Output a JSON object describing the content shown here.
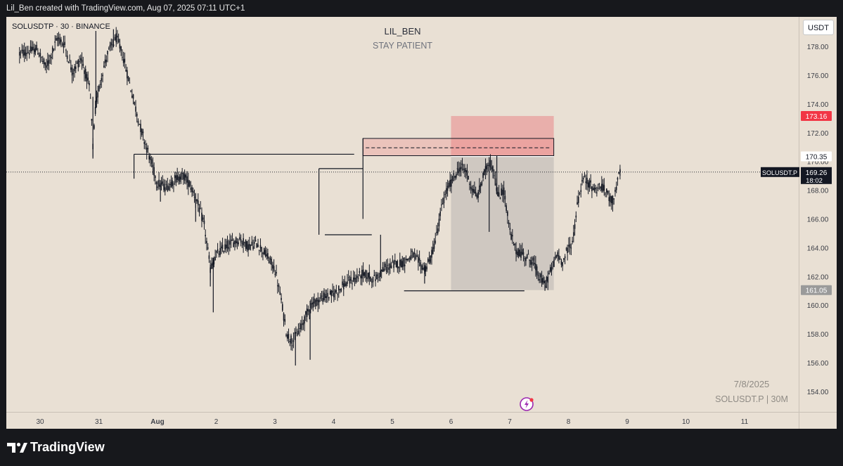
{
  "header": {
    "credit": "Lil_Ben created with TradingView.com, Aug 07, 2025 07:11 UTC+1"
  },
  "chart_header": {
    "symbol_info": "SOLUSDTP · 30 · BINANCE"
  },
  "titles": {
    "line1": "LIL_BEN",
    "line2": "STAY PATIENT"
  },
  "currency_button": "USDT",
  "watermark": {
    "date": "7/8/2025",
    "symbol": "SOLUSDT.P | 30M"
  },
  "footer": {
    "brand": "TradingView"
  },
  "colors": {
    "background": "#e9e0d4",
    "candle": "#131722",
    "stop_zone": "#e89a9a",
    "target_zone": "#c6c0bb",
    "stop_label": "#f23645"
  },
  "chart_data": {
    "type": "candlestick",
    "ylim": [
      152.6,
      179.4
    ],
    "y_ticks": [
      "154.00",
      "156.00",
      "158.00",
      "160.00",
      "162.00",
      "164.00",
      "166.00",
      "168.00",
      "170.00",
      "172.00",
      "174.00",
      "176.00",
      "178.00"
    ],
    "x_ticks": [
      "30",
      "31",
      "Aug",
      "2",
      "3",
      "4",
      "5",
      "6",
      "7",
      "8",
      "9",
      "10",
      "11"
    ],
    "last_price": 169.26,
    "price_labels": [
      {
        "value": 173.16,
        "text": "173.16",
        "kind": "stop"
      },
      {
        "value": 170.35,
        "text": "170.35",
        "kind": "entry"
      },
      {
        "value": 161.05,
        "text": "161.05",
        "kind": "target"
      }
    ],
    "current_label": {
      "symbol": "SOLUSDT.P",
      "price": "169.26",
      "countdown": "18:02"
    },
    "position": {
      "side": "short",
      "stop": 173.16,
      "entry": 170.35,
      "target": 161.05,
      "start_day": 7.0,
      "end_day": 8.75
    },
    "supply_zone": {
      "top": 171.6,
      "bottom": 170.4,
      "mid": 170.95,
      "start_day": 5.5,
      "end_day": 8.75
    },
    "levels": [
      {
        "price": 170.5,
        "start_day": 1.6,
        "end_day": 5.35
      },
      {
        "price": 169.5,
        "start_day": 4.75,
        "end_day": 5.5
      },
      {
        "price": 164.9,
        "start_day": 4.85,
        "end_day": 5.65
      },
      {
        "price": 161.0,
        "start_day": 6.2,
        "end_day": 8.25
      }
    ],
    "path": [
      [
        -0.35,
        177.5
      ],
      [
        -0.05,
        177.8
      ],
      [
        0.1,
        176.5
      ],
      [
        0.3,
        178.6
      ],
      [
        0.42,
        178.1
      ],
      [
        0.55,
        176.2
      ],
      [
        0.7,
        177.2
      ],
      [
        0.85,
        175.0
      ],
      [
        0.9,
        171.0
      ],
      [
        0.95,
        174.0
      ],
      [
        1.05,
        176.0
      ],
      [
        1.15,
        177.5
      ],
      [
        1.3,
        178.6
      ],
      [
        1.4,
        177.5
      ],
      [
        1.55,
        175.0
      ],
      [
        1.7,
        172.5
      ],
      [
        1.85,
        170.5
      ],
      [
        2.0,
        168.5
      ],
      [
        2.15,
        168.2
      ],
      [
        2.3,
        168.8
      ],
      [
        2.45,
        169.0
      ],
      [
        2.55,
        168.4
      ],
      [
        2.65,
        167.5
      ],
      [
        2.8,
        165.5
      ],
      [
        2.9,
        162.5
      ],
      [
        3.0,
        163.5
      ],
      [
        3.2,
        164.2
      ],
      [
        3.4,
        164.6
      ],
      [
        3.55,
        164.1
      ],
      [
        3.7,
        164.3
      ],
      [
        3.85,
        163.5
      ],
      [
        4.0,
        162.5
      ],
      [
        4.1,
        160.5
      ],
      [
        4.2,
        158.0
      ],
      [
        4.3,
        157.5
      ],
      [
        4.45,
        158.5
      ],
      [
        4.6,
        160.0
      ],
      [
        4.8,
        160.5
      ],
      [
        5.0,
        160.8
      ],
      [
        5.2,
        161.5
      ],
      [
        5.35,
        161.8
      ],
      [
        5.5,
        162.2
      ],
      [
        5.7,
        161.8
      ],
      [
        5.85,
        162.5
      ],
      [
        6.0,
        162.8
      ],
      [
        6.2,
        163.0
      ],
      [
        6.35,
        163.5
      ],
      [
        6.45,
        163.0
      ],
      [
        6.55,
        162.5
      ],
      [
        6.65,
        163.2
      ],
      [
        6.75,
        164.8
      ],
      [
        6.85,
        167.0
      ],
      [
        6.95,
        168.2
      ],
      [
        7.05,
        168.9
      ],
      [
        7.15,
        169.6
      ],
      [
        7.25,
        169.4
      ],
      [
        7.35,
        168.2
      ],
      [
        7.45,
        167.5
      ],
      [
        7.55,
        169.0
      ],
      [
        7.65,
        170.0
      ],
      [
        7.72,
        169.5
      ],
      [
        7.8,
        167.5
      ],
      [
        7.9,
        168.0
      ],
      [
        8.0,
        165.2
      ],
      [
        8.1,
        163.8
      ],
      [
        8.25,
        163.5
      ],
      [
        8.4,
        163.0
      ],
      [
        8.5,
        162.0
      ],
      [
        8.6,
        161.4
      ],
      [
        8.7,
        162.4
      ],
      [
        8.8,
        163.5
      ],
      [
        8.9,
        163.0
      ],
      [
        9.0,
        164.0
      ],
      [
        9.08,
        164.5
      ],
      [
        9.15,
        167.0
      ],
      [
        9.25,
        168.8
      ],
      [
        9.35,
        168.5
      ],
      [
        9.45,
        168.0
      ],
      [
        9.55,
        168.3
      ],
      [
        9.65,
        167.8
      ],
      [
        9.75,
        167.2
      ],
      [
        9.82,
        168.3
      ],
      [
        9.88,
        169.3
      ]
    ],
    "spikes": [
      {
        "day": 0.9,
        "low": 170.2,
        "high": 174.5
      },
      {
        "day": 0.95,
        "high": 179.2
      },
      {
        "day": 1.25,
        "high": 179.2
      },
      {
        "day": 2.05,
        "low": 167.2
      },
      {
        "day": 2.65,
        "low": 165.8
      },
      {
        "day": 2.9,
        "low": 161.3
      },
      {
        "day": 2.95,
        "low": 159.5
      },
      {
        "day": 4.35,
        "low": 155.8
      },
      {
        "day": 4.6,
        "low": 156.2
      },
      {
        "day": 5.8,
        "high": 164.9
      },
      {
        "day": 6.55,
        "low": 161.5
      },
      {
        "day": 7.2,
        "high": 169.2
      },
      {
        "day": 7.65,
        "low": 165.1
      },
      {
        "day": 7.78,
        "high": 170.4
      },
      {
        "day": 8.6,
        "low": 161.0
      },
      {
        "day": 9.88,
        "high": 169.5
      }
    ]
  }
}
